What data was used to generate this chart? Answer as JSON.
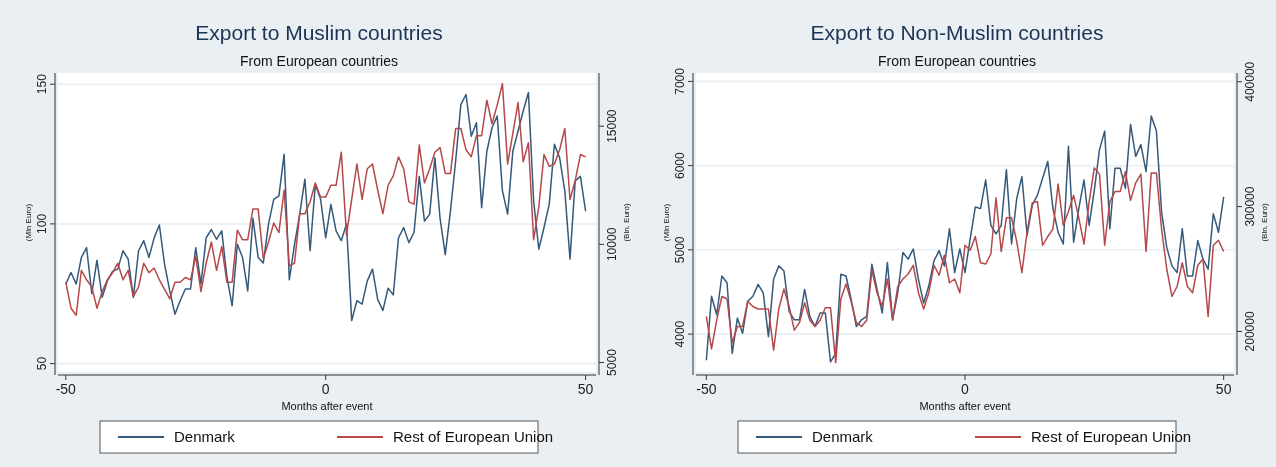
{
  "chart_data": [
    {
      "type": "line",
      "title": "Export to Muslim countries",
      "subtitle": "From European countries",
      "xlabel": "Months after event",
      "ylabel": "(Mln Euro)",
      "y2label": "(Bln. Euro)",
      "x": [
        -50,
        -49,
        -48,
        -47,
        -46,
        -45,
        -44,
        -43,
        -42,
        -41,
        -40,
        -39,
        -38,
        -37,
        -36,
        -35,
        -34,
        -33,
        -32,
        -31,
        -30,
        -29,
        -28,
        -27,
        -26,
        -25,
        -24,
        -23,
        -22,
        -21,
        -20,
        -19,
        -18,
        -17,
        -16,
        -15,
        -14,
        -13,
        -12,
        -11,
        -10,
        -9,
        -8,
        -7,
        -6,
        -5,
        -4,
        -3,
        -2,
        -1,
        0,
        1,
        2,
        3,
        4,
        5,
        6,
        7,
        8,
        9,
        10,
        11,
        12,
        13,
        14,
        15,
        16,
        17,
        18,
        19,
        20,
        21,
        22,
        23,
        24,
        25,
        26,
        27,
        28,
        29,
        30,
        31,
        32,
        33,
        34,
        35,
        36,
        37,
        38,
        39,
        40,
        41,
        42,
        43,
        44,
        45,
        46,
        47,
        48,
        49,
        50
      ],
      "series": [
        {
          "name": "Denmark",
          "color": "#35597a",
          "axis": "y",
          "values": [
            78.5,
            82.6,
            78.5,
            88,
            91.5,
            75,
            87,
            73.7,
            79.6,
            83,
            83.8,
            90.4,
            87.4,
            73.7,
            90.4,
            94,
            88,
            95,
            99.6,
            85.6,
            76,
            67.7,
            72.5,
            76.7,
            76.7,
            91.5,
            78.5,
            95,
            98,
            94.5,
            97.5,
            81,
            70.7,
            92.7,
            88,
            76,
            102,
            88,
            86,
            100,
            108.8,
            110,
            124.9,
            80,
            92.7,
            103.5,
            116,
            90.4,
            114,
            109,
            95,
            107,
            97.5,
            94,
            100,
            65.4,
            72.5,
            71.3,
            79.6,
            83.8,
            73,
            69,
            77,
            74.6,
            95,
            98.7,
            93.3,
            97,
            117,
            101,
            103.5,
            123.7,
            102,
            89,
            104.6,
            122.5,
            142.7,
            146.3,
            131.4,
            136.2,
            105.8,
            126,
            134.4,
            138.6,
            111.8,
            103.5,
            126,
            133.2,
            140.4,
            147,
            108.2,
            91,
            98.7,
            107,
            128.5,
            123.7,
            111.8,
            87.4,
            115.4,
            117,
            104.6
          ]
        },
        {
          "name": "Rest of European Union",
          "color": "#b5484a",
          "axis": "y2",
          "values": [
            8400,
            7300,
            7000,
            8900,
            8500,
            8200,
            7300,
            8000,
            8500,
            8800,
            9200,
            8500,
            8900,
            7800,
            8200,
            9200,
            8800,
            9000,
            8500,
            8100,
            7700,
            8400,
            8400,
            8600,
            8500,
            9500,
            8000,
            9200,
            10100,
            8900,
            9900,
            8400,
            8400,
            10600,
            10200,
            10200,
            11500,
            11500,
            9400,
            10100,
            10900,
            10500,
            12300,
            9100,
            9200,
            11300,
            11300,
            11800,
            12600,
            12000,
            12000,
            12500,
            12500,
            13900,
            10400,
            11900,
            13400,
            11900,
            13200,
            13400,
            12300,
            11300,
            12500,
            12900,
            13700,
            13200,
            11800,
            11700,
            14200,
            12600,
            13200,
            13900,
            14100,
            13000,
            13000,
            14900,
            14900,
            14000,
            13700,
            14600,
            14600,
            16100,
            15100,
            15900,
            16800,
            13400,
            14700,
            16000,
            13500,
            14300,
            10200,
            11600,
            13800,
            13300,
            13400,
            14000,
            14900,
            11900,
            12700,
            13800,
            13700
          ]
        }
      ],
      "xlim": [
        -51.5,
        52
      ],
      "xticks": [
        -50,
        0,
        50
      ],
      "ylim": [
        47,
        154
      ],
      "yticks": [
        50,
        100,
        150
      ],
      "y2lim": [
        4600,
        17250
      ],
      "y2ticks": [
        5000,
        10000,
        15000
      ],
      "grid": "y",
      "legend": "bottom"
    },
    {
      "type": "line",
      "title": "Export to Non-Muslim countries",
      "subtitle": "From European countries",
      "xlabel": "Months after event",
      "ylabel": "(Mln Euro)",
      "y2label": "(Bln. Euro)",
      "x": [
        -50,
        -49,
        -48,
        -47,
        -46,
        -45,
        -44,
        -43,
        -42,
        -41,
        -40,
        -39,
        -38,
        -37,
        -36,
        -35,
        -34,
        -33,
        -32,
        -31,
        -30,
        -29,
        -28,
        -27,
        -26,
        -25,
        -24,
        -23,
        -22,
        -21,
        -20,
        -19,
        -18,
        -17,
        -16,
        -15,
        -14,
        -13,
        -12,
        -11,
        -10,
        -9,
        -8,
        -7,
        -6,
        -5,
        -4,
        -3,
        -2,
        -1,
        0,
        1,
        2,
        3,
        4,
        5,
        6,
        7,
        8,
        9,
        10,
        11,
        12,
        13,
        14,
        15,
        16,
        17,
        18,
        19,
        20,
        21,
        22,
        23,
        24,
        25,
        26,
        27,
        28,
        29,
        30,
        31,
        32,
        33,
        34,
        35,
        36,
        37,
        38,
        39,
        40,
        41,
        42,
        43,
        44,
        45,
        46,
        47,
        48,
        49,
        50
      ],
      "series": [
        {
          "name": "Denmark",
          "color": "#35597a",
          "axis": "y",
          "values": [
            3690,
            4450,
            4230,
            4690,
            4610,
            3770,
            4190,
            4010,
            4390,
            4450,
            4590,
            4490,
            3970,
            4650,
            4810,
            4750,
            4270,
            4170,
            4170,
            4530,
            4210,
            4090,
            4250,
            4250,
            3670,
            3770,
            4710,
            4690,
            4410,
            4090,
            4170,
            4210,
            4830,
            4530,
            4250,
            4850,
            4170,
            4490,
            4970,
            4890,
            5010,
            4650,
            4370,
            4570,
            4870,
            4990,
            4810,
            5250,
            4730,
            5010,
            4730,
            5130,
            5510,
            5490,
            5830,
            5290,
            5190,
            5290,
            5950,
            5070,
            5610,
            5870,
            5170,
            5530,
            5650,
            5850,
            6050,
            5490,
            5210,
            5070,
            6230,
            5090,
            5490,
            5830,
            5290,
            5710,
            6190,
            6410,
            5250,
            5970,
            5970,
            5730,
            6490,
            6110,
            6250,
            5930,
            6590,
            6410,
            5450,
            5030,
            4810,
            4730,
            5250,
            4690,
            4690,
            5110,
            4890,
            4770,
            5430,
            5210,
            5630
          ]
        },
        {
          "name": "Rest of European Union",
          "color": "#b5484a",
          "axis": "y2",
          "values": [
            212000,
            186000,
            209000,
            228000,
            226000,
            191000,
            204000,
            204000,
            224000,
            220000,
            218000,
            218000,
            218000,
            185000,
            218000,
            234000,
            220000,
            201000,
            207000,
            223000,
            209000,
            204000,
            209000,
            219000,
            219000,
            175000,
            226000,
            238000,
            224000,
            207000,
            204000,
            209000,
            249000,
            231000,
            220000,
            242000,
            209000,
            236000,
            242000,
            246000,
            253000,
            231000,
            218000,
            231000,
            253000,
            245000,
            261000,
            239000,
            242000,
            231000,
            269000,
            265000,
            276000,
            255000,
            254000,
            262000,
            307000,
            264000,
            291000,
            291000,
            272000,
            247000,
            280000,
            303000,
            304000,
            269000,
            276000,
            282000,
            318000,
            285000,
            296000,
            309000,
            291000,
            270000,
            304000,
            331000,
            326000,
            269000,
            304000,
            312000,
            312000,
            328000,
            305000,
            319000,
            326000,
            264000,
            327000,
            327000,
            282000,
            250000,
            228000,
            236000,
            255000,
            236000,
            231000,
            253000,
            258000,
            212000,
            269000,
            273000,
            264000
          ]
        }
      ],
      "xlim": [
        -52,
        52
      ],
      "xticks": [
        -50,
        0,
        50
      ],
      "ylim": [
        3550,
        7100
      ],
      "yticks": [
        4000,
        5000,
        6000,
        7000
      ],
      "y2lim": [
        167500,
        407000
      ],
      "y2ticks": [
        200000,
        300000,
        400000
      ],
      "grid": "y",
      "legend": "bottom"
    }
  ]
}
